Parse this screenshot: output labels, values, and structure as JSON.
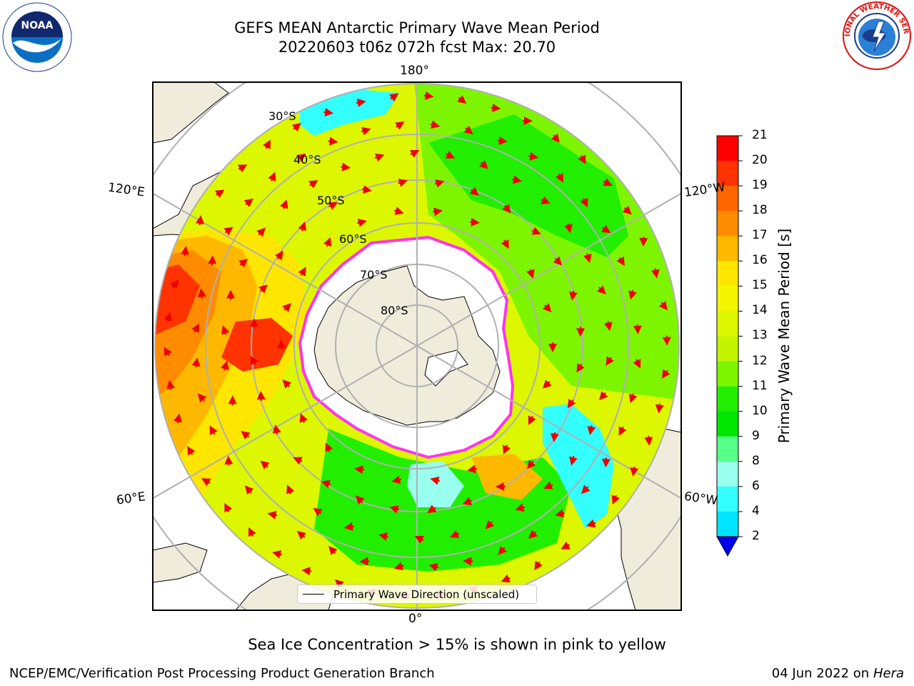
{
  "title_line1": "GEFS MEAN Antarctic Primary Wave Mean Period",
  "title_line2": "20220603 t06z 072h fcst   Max: 20.70",
  "logos": {
    "left": "noaa-logo",
    "left_text": "NOAA",
    "right": "nws-logo",
    "right_text": "NATIONAL WEATHER SERVICE"
  },
  "map": {
    "projection": "south-polar-stereographic",
    "lon_labels": {
      "top": "180°",
      "bottom": "0°",
      "upper_left": "120°E",
      "lower_left": "60°E",
      "upper_right": "120°W",
      "lower_right": "60°W"
    },
    "lat_labels": [
      "30°S",
      "40°S",
      "50°S",
      "60°S",
      "70°S",
      "80°S"
    ],
    "colors": {
      "land": "#efecdc",
      "ice": "#ffffff",
      "ice_edge": "#ff33ee",
      "arrow": "#ee0000",
      "grid": "#b0b0b0"
    }
  },
  "legend": {
    "label": "Primary Wave Direction (unscaled)"
  },
  "colorbar": {
    "label": "Primary Wave Mean Period [s]",
    "ticks": [
      "21",
      "20",
      "19",
      "18",
      "17",
      "16",
      "15",
      "14",
      "13",
      "12",
      "11",
      "10",
      "9",
      "8",
      "6",
      "4",
      "2"
    ],
    "colors": [
      "#ff0000",
      "#ff3300",
      "#ff6600",
      "#ff8c00",
      "#ffb800",
      "#ffe600",
      "#f5f500",
      "#dcf700",
      "#c4f500",
      "#7ef500",
      "#22ee00",
      "#00e600",
      "#55ff88",
      "#99ffee",
      "#33ffff",
      "#00e5ff",
      "#0088ff",
      "#0000ee"
    ]
  },
  "note": "Sea Ice Concentration > 15% is shown in pink to yellow",
  "footer_left": "NCEP/EMC/Verification Post Processing Product Generation Branch",
  "footer_right_date": "04 Jun 2022 on",
  "footer_right_host": "Hera"
}
